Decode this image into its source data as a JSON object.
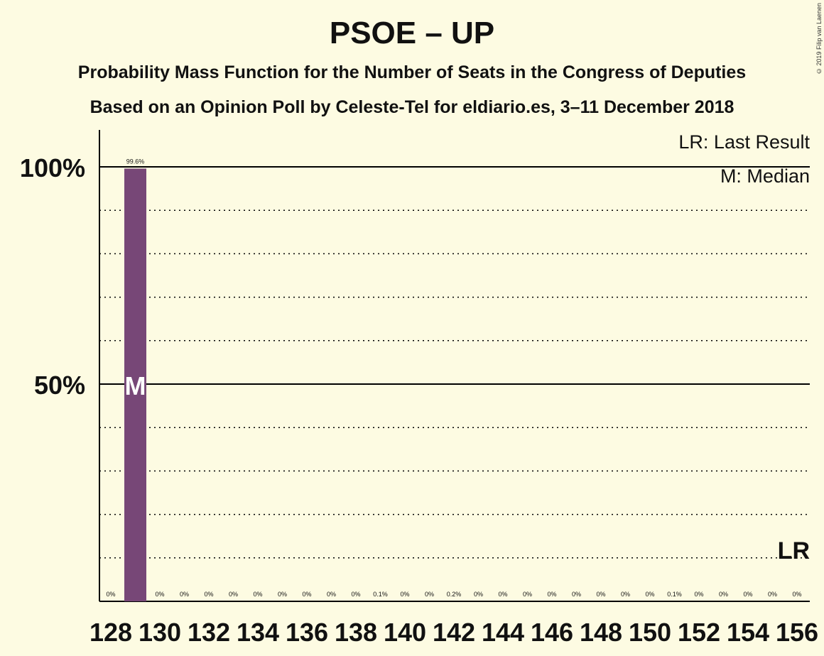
{
  "title": "PSOE – UP",
  "subtitle1": "Probability Mass Function for the Number of Seats in the Congress of Deputies",
  "subtitle2": "Based on an Opinion Poll by Celeste-Tel for eldiario.es, 3–11 December 2018",
  "copyright": "© 2019 Filip van Laenen",
  "legend": {
    "last_result": "LR: Last Result",
    "median": "M: Median"
  },
  "markers": {
    "median_mark": "M",
    "last_result_mark": "LR"
  },
  "colors": {
    "bar": "#774777",
    "background": "#fdfbe2",
    "axis": "#000000"
  },
  "chart_data": {
    "type": "bar",
    "x": [
      128,
      129,
      130,
      131,
      132,
      133,
      134,
      135,
      136,
      137,
      138,
      139,
      140,
      141,
      142,
      143,
      144,
      145,
      146,
      147,
      148,
      149,
      150,
      151,
      152,
      153,
      154,
      155,
      156
    ],
    "values": [
      0,
      99.6,
      0,
      0,
      0,
      0,
      0,
      0,
      0,
      0,
      0,
      0.1,
      0,
      0,
      0.2,
      0,
      0,
      0,
      0,
      0,
      0,
      0,
      0,
      0.1,
      0,
      0,
      0,
      0,
      0
    ],
    "labels": [
      "0%",
      "99.6%",
      "0%",
      "0%",
      "0%",
      "0%",
      "0%",
      "0%",
      "0%",
      "0%",
      "0%",
      "0.1%",
      "0%",
      "0%",
      "0.2%",
      "0%",
      "0%",
      "0%",
      "0%",
      "0%",
      "0%",
      "0%",
      "0%",
      "0.1%",
      "0%",
      "0%",
      "0%",
      "0%",
      "0%"
    ],
    "x_tick_labels": [
      "128",
      "130",
      "132",
      "134",
      "136",
      "138",
      "140",
      "142",
      "144",
      "146",
      "148",
      "150",
      "152",
      "154",
      "156"
    ],
    "y_tick_labels": [
      "50%",
      "100%"
    ],
    "ylim": [
      0,
      100
    ],
    "median_seat": 129,
    "last_result_seat": 156,
    "grid": true,
    "legend_position": "top-right"
  }
}
